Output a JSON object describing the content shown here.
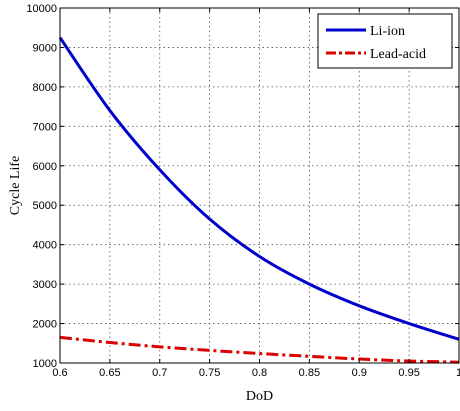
{
  "chart_data": {
    "type": "line",
    "title": "",
    "xlabel": "DoD",
    "ylabel": "Cycle Life",
    "xlim": [
      0.6,
      1.0
    ],
    "ylim": [
      1000,
      10000
    ],
    "xticks": [
      0.6,
      0.65,
      0.7,
      0.75,
      0.8,
      0.85,
      0.9,
      0.95,
      1
    ],
    "xtick_labels": [
      "0.6",
      "0.65",
      "0.7",
      "0.75",
      "0.8",
      "0.85",
      "0.9",
      "0.95",
      "1"
    ],
    "yticks": [
      1000,
      2000,
      3000,
      4000,
      5000,
      6000,
      7000,
      8000,
      9000,
      10000
    ],
    "ytick_labels": [
      "1000",
      "2000",
      "3000",
      "4000",
      "5000",
      "6000",
      "7000",
      "8000",
      "9000",
      "10000"
    ],
    "grid": true,
    "legend_position": "top-right",
    "x": [
      0.6,
      0.65,
      0.7,
      0.75,
      0.8,
      0.85,
      0.9,
      0.95,
      1.0
    ],
    "series": [
      {
        "name": "Li-ion",
        "color": "#0000cc",
        "style": "solid",
        "values": [
          9250,
          7400,
          5900,
          4650,
          3700,
          3000,
          2450,
          2000,
          1600
        ]
      },
      {
        "name": "Lead-acid",
        "color": "#dd0000",
        "style": "dashdot",
        "values": [
          1650,
          1520,
          1410,
          1320,
          1240,
          1170,
          1100,
          1050,
          1020
        ]
      }
    ]
  }
}
